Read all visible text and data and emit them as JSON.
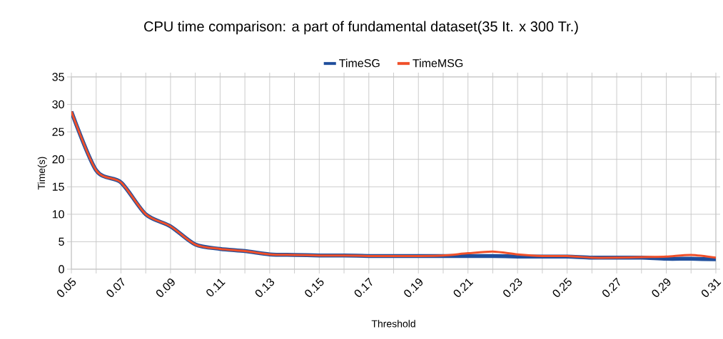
{
  "chart_data": {
    "type": "line",
    "title": "CPU time comparison: a part of fundamental dataset(35 It. x 300 Tr.)",
    "xlabel": "Threshold",
    "ylabel": "Time(s)",
    "x": [
      0.05,
      0.06,
      0.07,
      0.08,
      0.09,
      0.1,
      0.11,
      0.12,
      0.13,
      0.14,
      0.15,
      0.16,
      0.17,
      0.18,
      0.19,
      0.2,
      0.21,
      0.22,
      0.23,
      0.24,
      0.25,
      0.26,
      0.27,
      0.28,
      0.29,
      0.3,
      0.31
    ],
    "series": [
      {
        "name": "TimeSG",
        "color": "#1f4e9c",
        "values": [
          28.7,
          18,
          15.8,
          10,
          7.8,
          4.5,
          3.7,
          3.3,
          2.7,
          2.6,
          2.5,
          2.5,
          2.4,
          2.4,
          2.4,
          2.4,
          2.4,
          2.4,
          2.3,
          2.3,
          2.3,
          2.1,
          2.1,
          2.1,
          1.9,
          1.9,
          1.8
        ]
      },
      {
        "name": "TimeMSG",
        "color": "#f0502a",
        "values": [
          28.7,
          18,
          15.8,
          10,
          7.8,
          4.5,
          3.7,
          3.3,
          2.7,
          2.6,
          2.5,
          2.5,
          2.4,
          2.4,
          2.4,
          2.5,
          2.9,
          3.2,
          2.7,
          2.4,
          2.4,
          2.1,
          2.1,
          2.2,
          2.3,
          2.6,
          2.1
        ]
      }
    ],
    "xlim": [
      0.05,
      0.31
    ],
    "xticks": [
      0.05,
      {
        "value": 0.06,
        "label": null
      },
      0.07,
      {
        "value": 0.08,
        "label": null
      },
      0.09,
      {
        "value": 0.1,
        "label": null
      },
      0.11,
      {
        "value": 0.12,
        "label": null
      },
      0.13,
      {
        "value": 0.14,
        "label": null
      },
      0.15,
      {
        "value": 0.16,
        "label": null
      },
      0.17,
      {
        "value": 0.18,
        "label": null
      },
      0.19,
      {
        "value": 0.2,
        "label": null
      },
      0.21,
      {
        "value": 0.22,
        "label": null
      },
      0.23,
      {
        "value": 0.24,
        "label": null
      },
      0.25,
      {
        "value": 0.26,
        "label": null
      },
      0.27,
      {
        "value": 0.28,
        "label": null
      },
      0.29,
      {
        "value": 0.3,
        "label": null
      },
      0.31
    ],
    "ylim": [
      0,
      35
    ],
    "yticks": [
      0,
      5,
      10,
      15,
      20,
      25,
      30,
      35
    ],
    "grid": true,
    "legend": "top",
    "marker": "none",
    "line_style": "solid"
  }
}
